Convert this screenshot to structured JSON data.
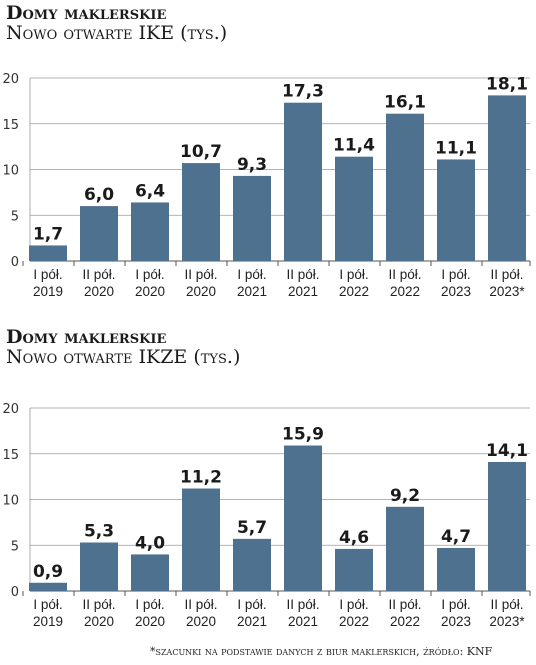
{
  "chart_data": [
    {
      "type": "bar",
      "title": "Domy maklerskie",
      "subtitle": "Nowo otwarte IKE (tys.)",
      "categories": [
        "I pół. 2019",
        "II pół. 2020",
        "I pół. 2020",
        "II pół. 2020",
        "I pół. 2021",
        "II pół. 2021",
        "I pół. 2022",
        "II pół. 2022",
        "I pół. 2023",
        "II pół. 2023*"
      ],
      "category_lines": [
        [
          "I pół.",
          "2019"
        ],
        [
          "II pół.",
          "2020"
        ],
        [
          "I pół.",
          "2020"
        ],
        [
          "II pół.",
          "2020"
        ],
        [
          "I pół.",
          "2021"
        ],
        [
          "II pół.",
          "2021"
        ],
        [
          "I pół.",
          "2022"
        ],
        [
          "II pół.",
          "2022"
        ],
        [
          "I pół.",
          "2023"
        ],
        [
          "II pół.",
          "2023*"
        ]
      ],
      "values": [
        1.7,
        6.0,
        6.4,
        10.7,
        9.3,
        17.3,
        11.4,
        16.1,
        11.1,
        18.1
      ],
      "value_labels": [
        "1,7",
        "6,0",
        "6,4",
        "10,7",
        "9,3",
        "17,3",
        "11,4",
        "16,1",
        "11,1",
        "18,1"
      ],
      "ylim": [
        0,
        20
      ],
      "yticks": [
        0,
        5,
        10,
        15,
        20
      ],
      "grid": true,
      "bar_color": "#4f7190"
    },
    {
      "type": "bar",
      "title": "Domy maklerskie",
      "subtitle": "Nowo otwarte IKZE (tys.)",
      "categories": [
        "I pół. 2019",
        "II pół. 2020",
        "I pół. 2020",
        "II pół. 2020",
        "I pół. 2021",
        "II pół. 2021",
        "I pół. 2022",
        "II pół. 2022",
        "I pół. 2023",
        "II pół. 2023*"
      ],
      "category_lines": [
        [
          "I pół.",
          "2019"
        ],
        [
          "II pół.",
          "2020"
        ],
        [
          "I pół.",
          "2020"
        ],
        [
          "II pół.",
          "2020"
        ],
        [
          "I pół.",
          "2021"
        ],
        [
          "II pół.",
          "2021"
        ],
        [
          "I pół.",
          "2022"
        ],
        [
          "II pół.",
          "2022"
        ],
        [
          "I pół.",
          "2023"
        ],
        [
          "II pół.",
          "2023*"
        ]
      ],
      "values": [
        0.9,
        5.3,
        4.0,
        11.2,
        5.7,
        15.9,
        4.6,
        9.2,
        4.7,
        14.1
      ],
      "value_labels": [
        "0,9",
        "5,3",
        "4,0",
        "11,2",
        "5,7",
        "15,9",
        "4,6",
        "9,2",
        "4,7",
        "14,1"
      ],
      "ylim": [
        0,
        20
      ],
      "yticks": [
        0,
        5,
        10,
        15,
        20
      ],
      "grid": true,
      "bar_color": "#4f7190"
    }
  ],
  "footnote": "*szacunki na podstawie danych z biur maklerskich, źródło: KNF"
}
